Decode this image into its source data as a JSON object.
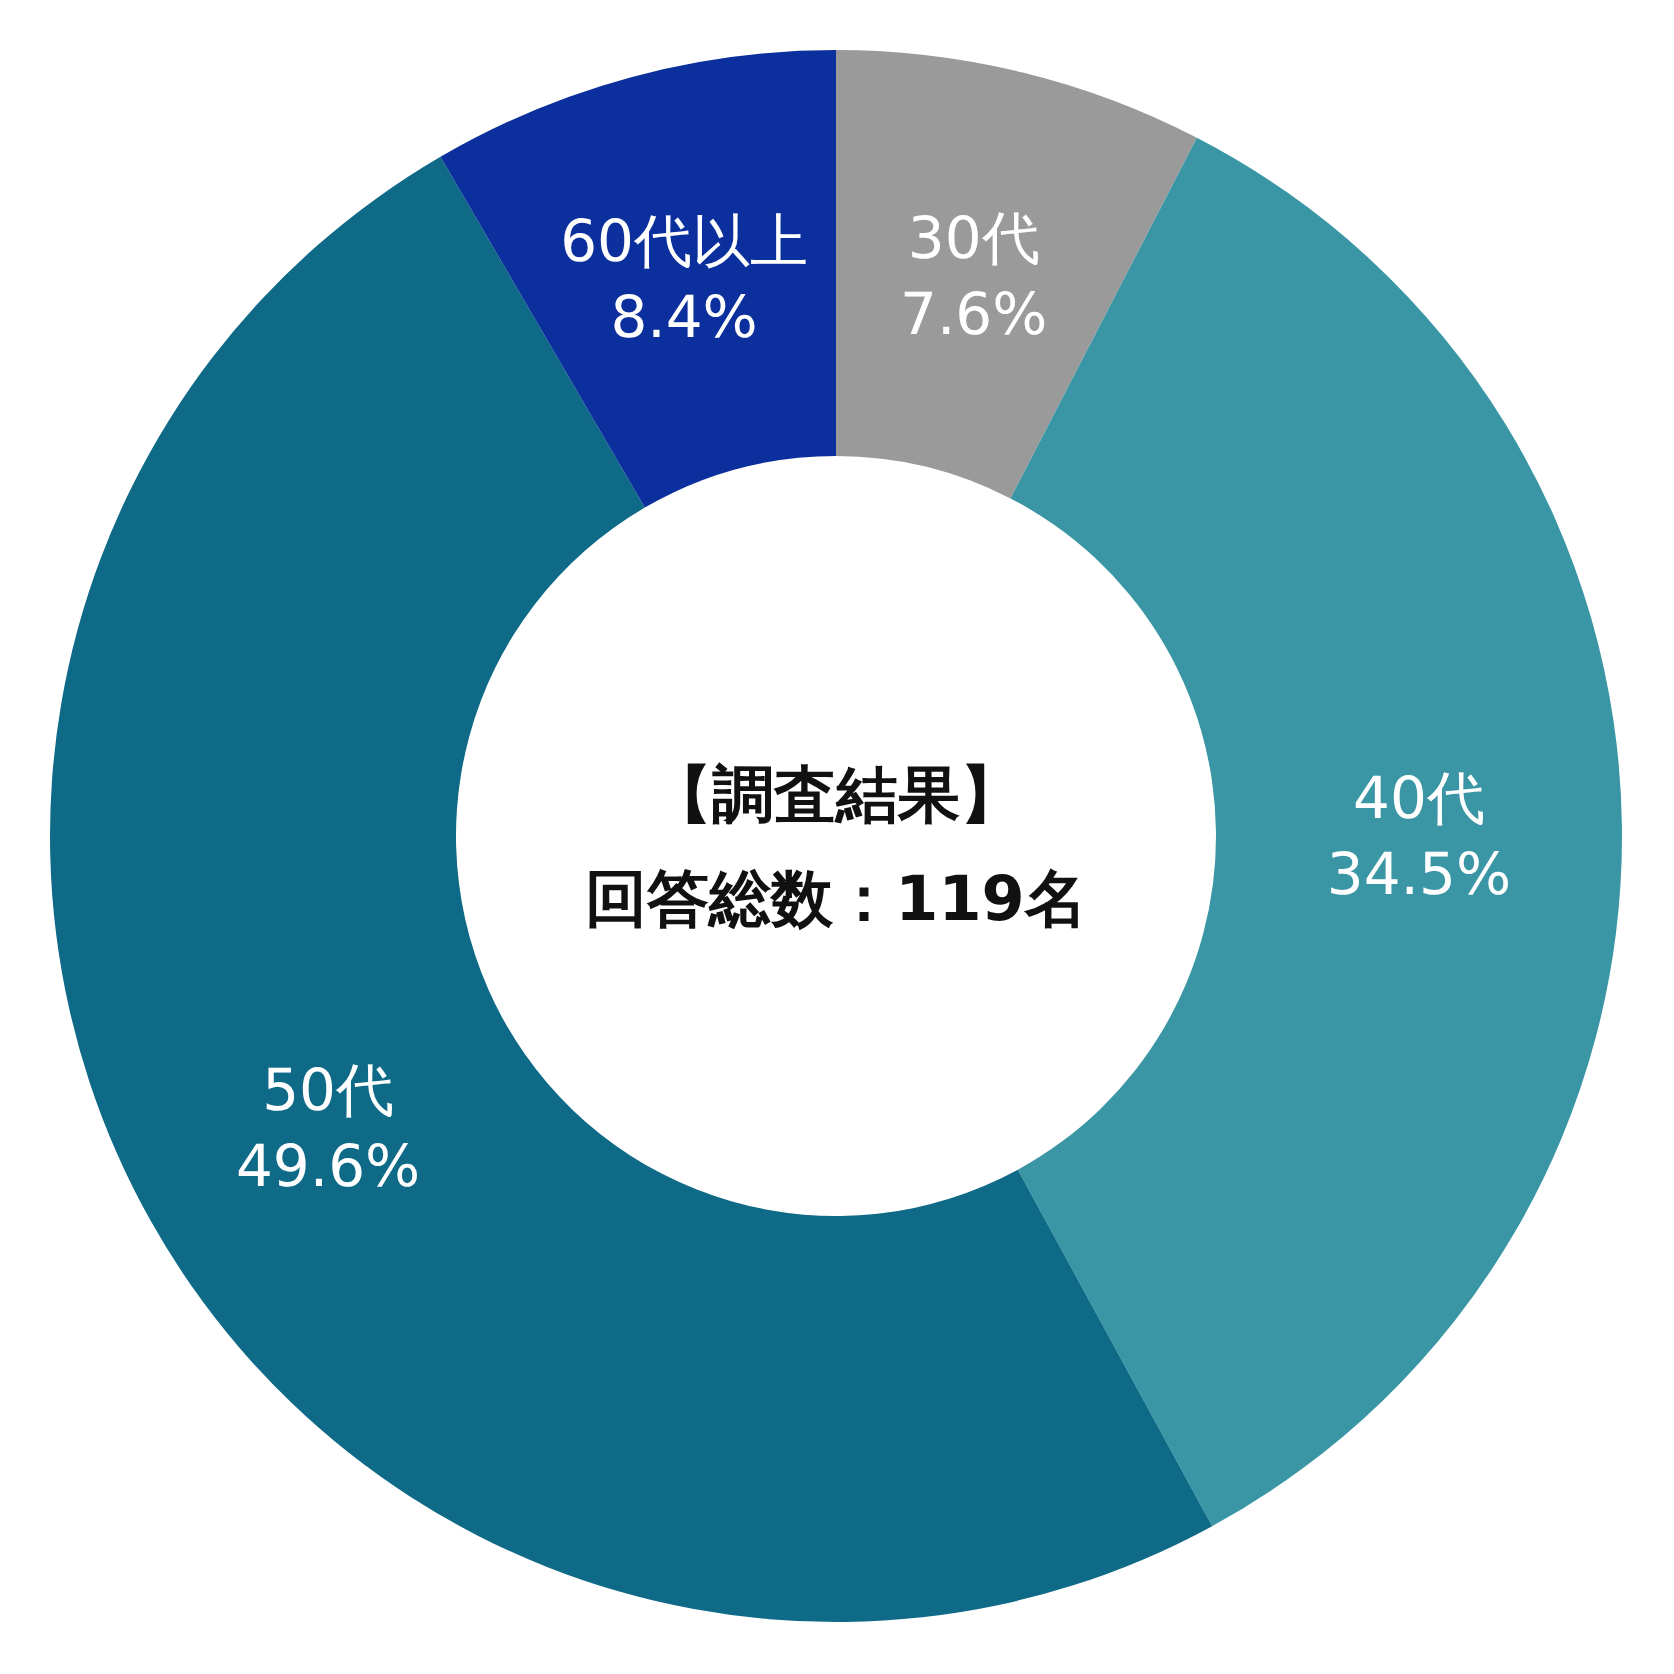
{
  "chart_data": {
    "type": "donut",
    "title": "【調査結果】",
    "subtitle": "回答総数：119名",
    "categories": [
      "30代",
      "40代",
      "50代",
      "60代以上"
    ],
    "values": [
      7.6,
      34.5,
      49.6,
      8.4
    ],
    "value_labels": [
      "7.6%",
      "34.5%",
      "49.6%",
      "8.4%"
    ],
    "colors": [
      "#9a9a9a",
      "#3a96a4",
      "#0f6a88",
      "#0b2f9c"
    ]
  }
}
